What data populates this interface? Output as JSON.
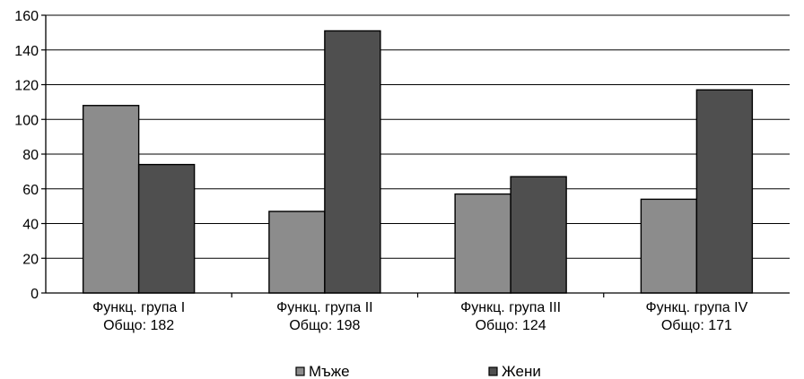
{
  "chart_data": {
    "type": "bar",
    "categories": [
      {
        "line1": "Функц. група I",
        "line2": "Общо: 182"
      },
      {
        "line1": "Функц. група II",
        "line2": "Общо: 198"
      },
      {
        "line1": "Функц. група III",
        "line2": "Общо: 124"
      },
      {
        "line1": "Функц. група IV",
        "line2": "Общо: 171"
      }
    ],
    "series": [
      {
        "name": "Мъже",
        "color": "#8c8c8c",
        "values": [
          108,
          47,
          57,
          54
        ]
      },
      {
        "name": "Жени",
        "color": "#4f4f4f",
        "values": [
          74,
          151,
          67,
          117
        ]
      }
    ],
    "ylim": [
      0,
      160
    ],
    "yticks": [
      0,
      20,
      40,
      60,
      80,
      100,
      120,
      140,
      160
    ],
    "grid": true,
    "legend_position": "bottom-center",
    "title": "",
    "xlabel": "",
    "ylabel": ""
  }
}
